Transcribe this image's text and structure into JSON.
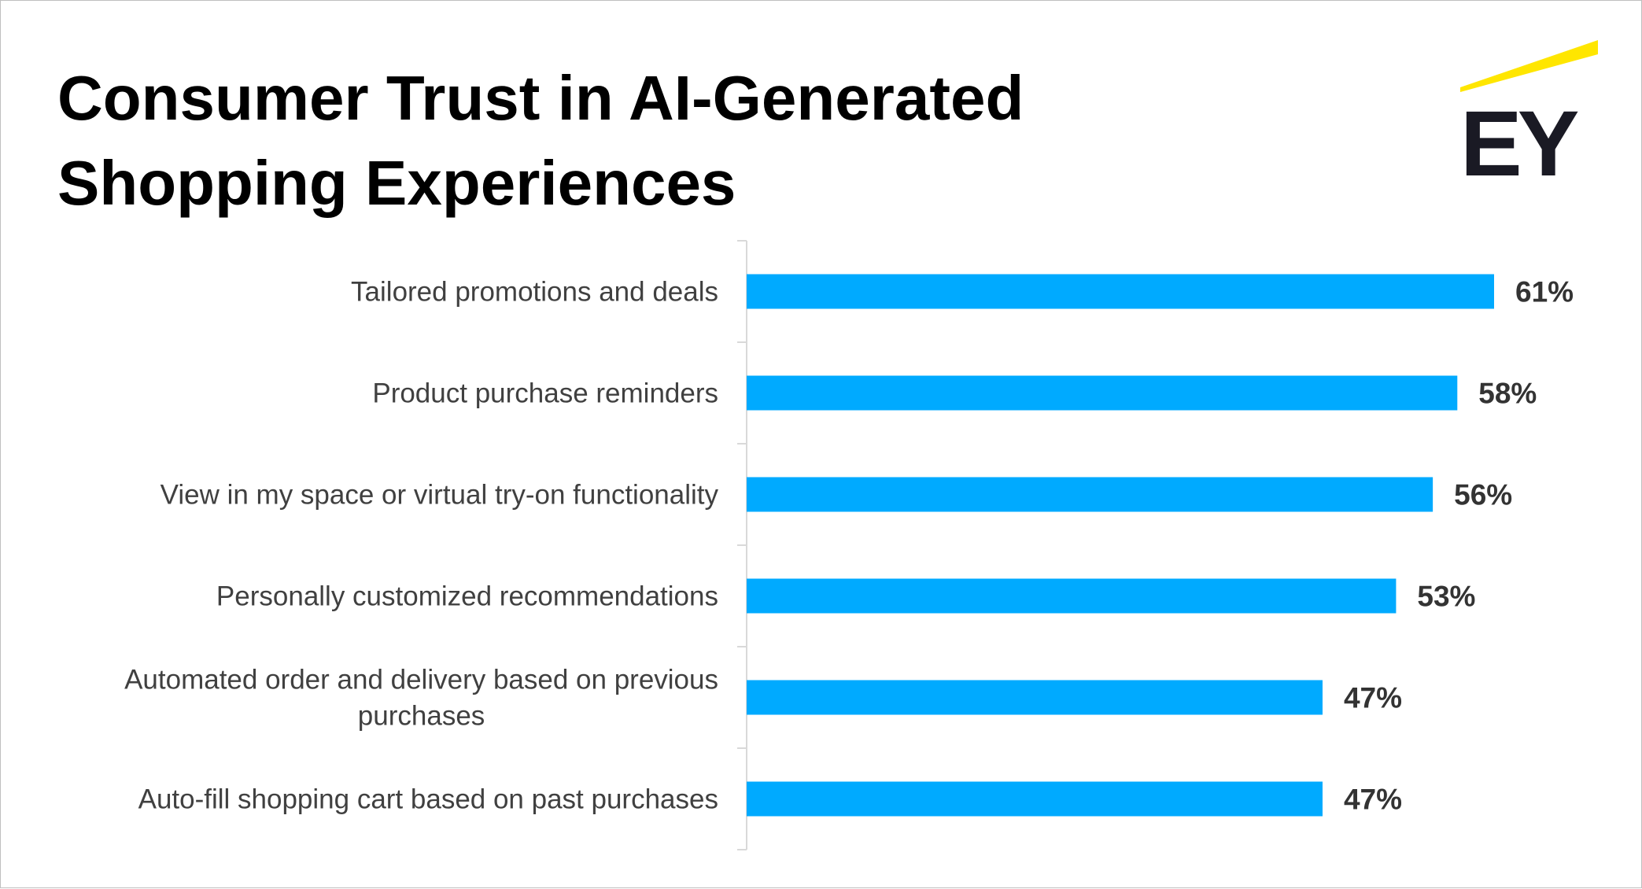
{
  "title_lines": [
    "Consumer Trust in AI-Generated",
    "Shopping Experiences"
  ],
  "logo": {
    "text": "EY",
    "icon": "ey-logo-icon",
    "beam_color": "#FFE600",
    "text_color": "#1A1A24"
  },
  "colors": {
    "bar": "#00AAFF",
    "axis": "#d9d9d9",
    "label": "#404040",
    "value": "#333333"
  },
  "chart_data": {
    "type": "bar",
    "orientation": "horizontal",
    "title": "Consumer Trust in AI-Generated Shopping Experiences",
    "categories": [
      [
        "Tailored promotions and deals"
      ],
      [
        "Product purchase reminders"
      ],
      [
        "View in my space or virtual try-on functionality"
      ],
      [
        "Personally customized recommendations"
      ],
      [
        "Automated order and delivery based on previous",
        "purchases"
      ],
      [
        "Auto-fill shopping cart based on past purchases"
      ]
    ],
    "values": [
      61,
      58,
      56,
      53,
      47,
      47
    ],
    "value_labels": [
      "61%",
      "58%",
      "56%",
      "53%",
      "47%",
      "47%"
    ],
    "unit": "%",
    "xlim": [
      0,
      61
    ],
    "grid": false,
    "legend": "none"
  }
}
